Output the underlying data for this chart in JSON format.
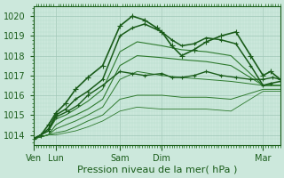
{
  "xlabel": "Pression niveau de la mer( hPa )",
  "ylim": [
    1013.5,
    1020.5
  ],
  "yticks": [
    1014,
    1015,
    1016,
    1017,
    1018,
    1019,
    1020
  ],
  "bg_color": "#cce8dc",
  "grid_color_major": "#a0c8b8",
  "grid_color_minor": "#b8dccb",
  "line_color_dark": "#1a5c1a",
  "line_color_mid": "#2e7a2e",
  "xtick_labels": [
    "Ven",
    "Lun",
    "Sam",
    "Dim",
    "Mar"
  ],
  "xtick_positions": [
    0.0,
    0.09,
    0.35,
    0.52,
    0.93
  ],
  "xlim": [
    0.0,
    1.0
  ],
  "series": [
    {
      "x": [
        0.0,
        0.03,
        0.06,
        0.09,
        0.13,
        0.17,
        0.22,
        0.28,
        0.35,
        0.4,
        0.45,
        0.5,
        0.52,
        0.56,
        0.6,
        0.65,
        0.7,
        0.76,
        0.82,
        0.88,
        0.93,
        0.96,
        1.0
      ],
      "y": [
        1013.8,
        1014.0,
        1014.5,
        1015.1,
        1015.6,
        1016.3,
        1016.9,
        1017.5,
        1019.5,
        1020.0,
        1019.8,
        1019.4,
        1019.2,
        1018.5,
        1018.0,
        1018.3,
        1018.7,
        1019.0,
        1019.2,
        1018.0,
        1017.0,
        1017.2,
        1016.8
      ],
      "color": "#1a5c1a",
      "lw": 1.2,
      "marker": "+",
      "ms": 4
    },
    {
      "x": [
        0.0,
        0.03,
        0.06,
        0.09,
        0.13,
        0.17,
        0.22,
        0.28,
        0.35,
        0.4,
        0.45,
        0.52,
        0.56,
        0.6,
        0.65,
        0.7,
        0.76,
        0.82,
        0.88,
        0.93,
        0.96,
        1.0
      ],
      "y": [
        1013.8,
        1014.0,
        1014.3,
        1015.0,
        1015.3,
        1015.8,
        1016.2,
        1016.8,
        1019.0,
        1019.4,
        1019.6,
        1019.2,
        1018.8,
        1018.5,
        1018.6,
        1018.9,
        1018.8,
        1018.6,
        1017.5,
        1016.5,
        1016.6,
        1016.7
      ],
      "color": "#1a5c1a",
      "lw": 1.1,
      "marker": "+",
      "ms": 3.5
    },
    {
      "x": [
        0.0,
        0.03,
        0.06,
        0.09,
        0.13,
        0.17,
        0.22,
        0.28,
        0.35,
        0.42,
        0.52,
        0.6,
        0.7,
        0.8,
        0.93,
        1.0
      ],
      "y": [
        1013.8,
        1014.0,
        1014.2,
        1014.8,
        1015.0,
        1015.3,
        1015.7,
        1016.3,
        1018.2,
        1018.7,
        1018.5,
        1018.3,
        1018.2,
        1018.0,
        1016.5,
        1016.5
      ],
      "color": "#2e7a2e",
      "lw": 0.8,
      "marker": null,
      "ms": 0
    },
    {
      "x": [
        0.0,
        0.03,
        0.06,
        0.09,
        0.13,
        0.17,
        0.22,
        0.28,
        0.35,
        0.42,
        0.52,
        0.6,
        0.7,
        0.8,
        0.93,
        1.0
      ],
      "y": [
        1013.8,
        1013.9,
        1014.0,
        1014.5,
        1014.8,
        1015.0,
        1015.3,
        1015.8,
        1017.5,
        1018.0,
        1017.9,
        1017.8,
        1017.7,
        1017.5,
        1016.5,
        1016.5
      ],
      "color": "#2e7a2e",
      "lw": 0.8,
      "marker": null,
      "ms": 0
    },
    {
      "x": [
        0.0,
        0.03,
        0.06,
        0.09,
        0.13,
        0.17,
        0.22,
        0.28,
        0.35,
        0.42,
        0.52,
        0.6,
        0.7,
        0.8,
        0.93,
        1.0
      ],
      "y": [
        1013.8,
        1013.9,
        1014.0,
        1014.3,
        1014.5,
        1014.7,
        1015.0,
        1015.4,
        1016.8,
        1017.2,
        1017.0,
        1016.9,
        1016.8,
        1016.7,
        1016.5,
        1016.5
      ],
      "color": "#2e7a2e",
      "lw": 0.7,
      "marker": null,
      "ms": 0
    },
    {
      "x": [
        0.0,
        0.03,
        0.06,
        0.09,
        0.13,
        0.17,
        0.22,
        0.28,
        0.35,
        0.42,
        0.52,
        0.6,
        0.7,
        0.8,
        0.93,
        1.0
      ],
      "y": [
        1013.8,
        1013.9,
        1014.0,
        1014.1,
        1014.2,
        1014.4,
        1014.7,
        1015.0,
        1015.8,
        1016.0,
        1016.0,
        1015.9,
        1015.9,
        1015.8,
        1016.3,
        1016.3
      ],
      "color": "#2e7a2e",
      "lw": 0.7,
      "marker": null,
      "ms": 0
    },
    {
      "x": [
        0.0,
        0.03,
        0.06,
        0.09,
        0.13,
        0.17,
        0.22,
        0.28,
        0.35,
        0.42,
        0.52,
        0.6,
        0.7,
        0.8,
        0.93,
        1.0
      ],
      "y": [
        1013.8,
        1013.9,
        1014.0,
        1014.0,
        1014.1,
        1014.2,
        1014.4,
        1014.7,
        1015.2,
        1015.4,
        1015.3,
        1015.3,
        1015.3,
        1015.2,
        1016.2,
        1016.2
      ],
      "color": "#2e7a2e",
      "lw": 0.6,
      "marker": null,
      "ms": 0
    },
    {
      "x": [
        0.0,
        0.03,
        0.06,
        0.09,
        0.14,
        0.18,
        0.22,
        0.28,
        0.35,
        0.4,
        0.45,
        0.52,
        0.56,
        0.6,
        0.65,
        0.7,
        0.76,
        0.82,
        0.88,
        0.93,
        0.97,
        1.0
      ],
      "y": [
        1013.8,
        1014.0,
        1014.2,
        1014.9,
        1015.2,
        1015.5,
        1016.0,
        1016.5,
        1017.2,
        1017.1,
        1017.0,
        1017.1,
        1016.9,
        1016.9,
        1017.0,
        1017.2,
        1017.0,
        1016.9,
        1016.8,
        1016.8,
        1016.9,
        1016.8
      ],
      "color": "#1a5c1a",
      "lw": 1.0,
      "marker": "+",
      "ms": 3.5
    }
  ],
  "xlabel_fontsize": 8,
  "ytick_fontsize": 7,
  "xtick_fontsize": 7
}
